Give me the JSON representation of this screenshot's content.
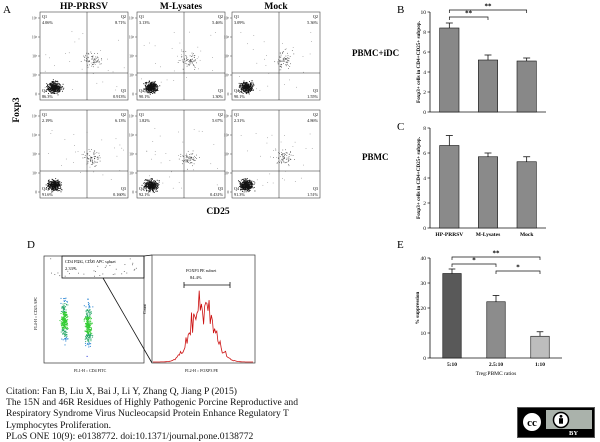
{
  "panel_letters": {
    "A": "A",
    "B": "B",
    "C": "C",
    "D": "D",
    "E": "E"
  },
  "flow_grid": {
    "columns": [
      "HP-PRRSV",
      "M-Lysates",
      "Mock"
    ],
    "rows": [
      "PBMC+iDC",
      "PBMC"
    ],
    "y_axis_label": "Foxp3",
    "x_axis_label": "CD25",
    "quadrants": [
      [
        {
          "q1": "Q1",
          "v1": "4.06%",
          "q2": "Q2",
          "v2": "8.71%",
          "q3": "Q3",
          "v3": "0.913%",
          "q4": "Q4",
          "v4": "86.3%"
        },
        {
          "q1": "Q1",
          "v1": "3.13%",
          "q2": "Q2",
          "v2": "5.46%",
          "q3": "Q3",
          "v3": "1.30%",
          "q4": "Q4",
          "v4": "90.1%"
        },
        {
          "q1": "Q1",
          "v1": "3.09%",
          "q2": "Q2",
          "v2": "5.36%",
          "q3": "Q3",
          "v3": "1.55%",
          "q4": "Q4",
          "v4": "90.1%"
        }
      ],
      [
        {
          "q1": "Q1",
          "v1": "2.19%",
          "q2": "Q2",
          "v2": "6.13%",
          "q3": "Q3",
          "v3": "0.160%",
          "q4": "Q4",
          "v4": "91.6%"
        },
        {
          "q1": "Q1",
          "v1": "1.82%",
          "q2": "Q2",
          "v2": "5.67%",
          "q3": "Q3",
          "v3": "0.431%",
          "q4": "Q4",
          "v4": "92.1%"
        },
        {
          "q1": "Q1",
          "v1": "2.31%",
          "q2": "Q2",
          "v2": "4.86%",
          "q3": "Q3",
          "v3": "1.51%",
          "q4": "Q4",
          "v4": "91.3%"
        }
      ]
    ]
  },
  "panel_d": {
    "gate_label_1": "CD4 FITC, CD25 APC subset",
    "gate_value_1": "2.33%",
    "gate_label_2": "FOXP3 PE subset",
    "gate_value_2": "84.4%",
    "dot_y_label": "FL4-H :: CD25 APC",
    "dot_x_label": "FL1-H :: CD4 FITC",
    "hist_y_label": "Count",
    "hist_x_label": "FL2-H :: FOXP3 PE"
  },
  "citation": {
    "line1": "Citation: Fan B, Liu X, Bai J, Li Y, Zhang Q, Jiang P (2015)",
    "line2": "The 15N and 46R Residues of Highly Pathogenic Porcine Reproductive and",
    "line3": "Respiratory Syndrome Virus Nucleocapsid Protein Enhance Regulatory T",
    "line4": "Lymphocytes Proliferation.",
    "line5": "PLoS ONE 10(9): e0138772. doi:10.1371/journal.pone.0138772"
  },
  "license_badge": {
    "cc": "cc",
    "by": "BY"
  },
  "colors": {
    "bar_b": "#888888",
    "bar_c": "#8a8a8a",
    "bar_e1": "#595959",
    "bar_e2": "#8c8c8c",
    "bar_e3": "#bdbdbd",
    "hist": "#cc1111"
  },
  "chart_data": [
    {
      "type": "bar",
      "panel": "B",
      "ylabel": "Foxp3+ cells in CD4+CD25+ subpop.",
      "ylim": [
        0,
        10
      ],
      "yticks": [
        "0",
        "2",
        "4",
        "6",
        "8",
        "10"
      ],
      "categories": [
        "HP-PRRSV",
        "M-Lysates",
        "Mock"
      ],
      "values": [
        8.4,
        5.2,
        5.1
      ],
      "errors": [
        0.5,
        0.5,
        0.3
      ],
      "significance": [
        "**",
        "**"
      ]
    },
    {
      "type": "bar",
      "panel": "C",
      "ylabel": "Foxp3+ cells in CD4+CD25+ subpop.",
      "ylim": [
        0,
        8
      ],
      "yticks": [
        "0",
        "2",
        "4",
        "6",
        "8"
      ],
      "categories": [
        "HP-PRRSV",
        "M-Lysates",
        "Mock"
      ],
      "values": [
        6.6,
        5.7,
        5.3
      ],
      "errors": [
        0.8,
        0.3,
        0.4
      ]
    },
    {
      "type": "bar",
      "panel": "E",
      "ylabel": "% suppression",
      "xlabel": "Treg:PBMC ratios",
      "ylim": [
        0,
        40
      ],
      "yticks": [
        "0",
        "10",
        "20",
        "30",
        "40"
      ],
      "categories": [
        "5:10",
        "2.5:10",
        "1:10"
      ],
      "values": [
        33.8,
        22.5,
        8.7
      ],
      "errors": [
        1.8,
        2.5,
        1.8
      ],
      "significance": [
        "**",
        "*",
        "*"
      ]
    }
  ]
}
